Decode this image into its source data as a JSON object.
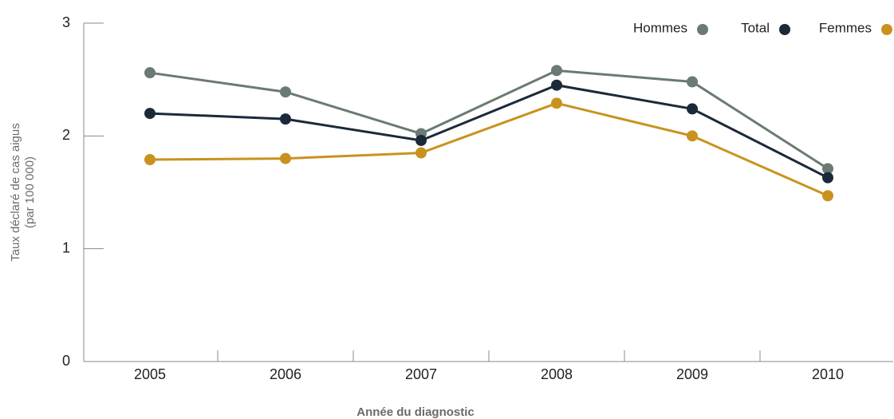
{
  "chart_data": {
    "type": "line",
    "ylabel": [
      "Taux déclaré de cas aigus",
      "(par 100 000)"
    ],
    "xlabel": "Année du diagnostic",
    "categories": [
      "2005",
      "2006",
      "2007",
      "2008",
      "2009",
      "2010"
    ],
    "series": [
      {
        "name": "Hommes",
        "color": "#6b7a72",
        "values": [
          2.56,
          2.39,
          2.02,
          2.58,
          2.48,
          1.71
        ]
      },
      {
        "name": "Total",
        "color": "#1a2a3a",
        "values": [
          2.2,
          2.15,
          1.96,
          2.45,
          2.24,
          1.63
        ]
      },
      {
        "name": "Femmes",
        "color": "#c9921e",
        "values": [
          1.79,
          1.8,
          1.85,
          2.29,
          2.0,
          1.47
        ]
      }
    ],
    "ylim": [
      0,
      3
    ],
    "yticks": [
      0,
      1,
      2,
      3
    ],
    "legend": "top-right"
  }
}
